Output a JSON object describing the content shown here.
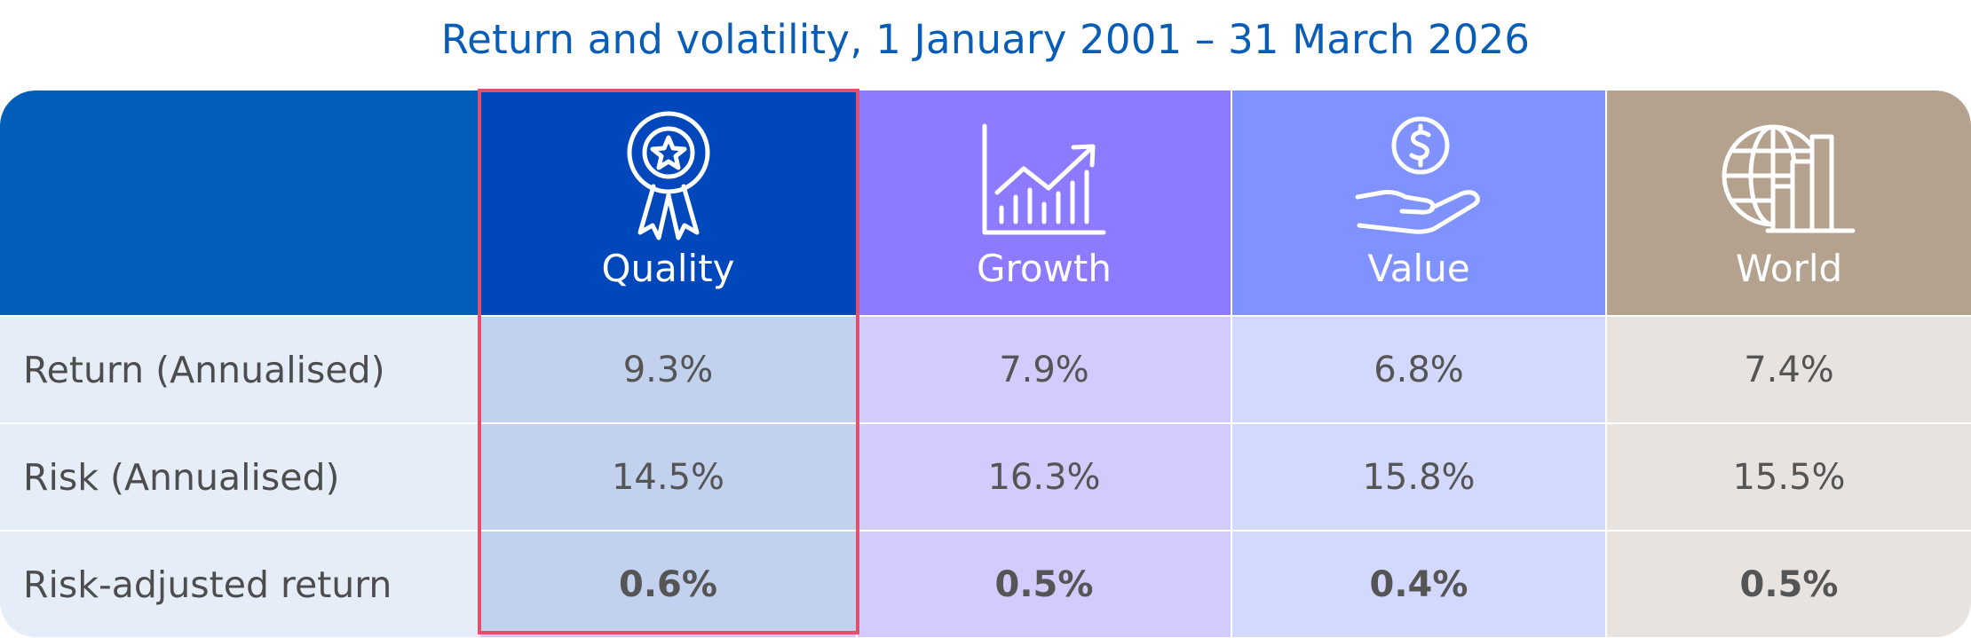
{
  "chart_data": {
    "type": "table",
    "title": "Return and volatility, 1 January 2001 – 31 March 2026",
    "columns": [
      {
        "name": "Quality",
        "icon": "award-ribbon-icon",
        "header_color": "#0047bb",
        "cell_color": "#c1d1ee"
      },
      {
        "name": "Growth",
        "icon": "growth-chart-icon",
        "header_color": "#8c7bff",
        "cell_color": "#d3cbfc"
      },
      {
        "name": "Value",
        "icon": "dollar-hand-icon",
        "header_color": "#7f92ff",
        "cell_color": "#d2d9fd"
      },
      {
        "name": "World",
        "icon": "globe-building-icon",
        "header_color": "#b4a28f",
        "cell_color": "#e8e3de"
      }
    ],
    "rows": [
      {
        "label": "Return (Annualised)",
        "values": [
          "9.3%",
          "7.9%",
          "6.8%",
          "7.4%"
        ]
      },
      {
        "label": "Risk (Annualised)",
        "values": [
          "14.5%",
          "16.3%",
          "15.8%",
          "15.5%"
        ]
      },
      {
        "label": "Risk-adjusted return",
        "values": [
          "0.6%",
          "0.5%",
          "0.4%",
          "0.5%"
        ]
      }
    ],
    "highlighted_column": "Quality"
  },
  "colors": {
    "title": "#0a5db7",
    "label_header": "#005eb8",
    "label_cells": "#e5eef8",
    "highlight_border": "#e2506e"
  }
}
